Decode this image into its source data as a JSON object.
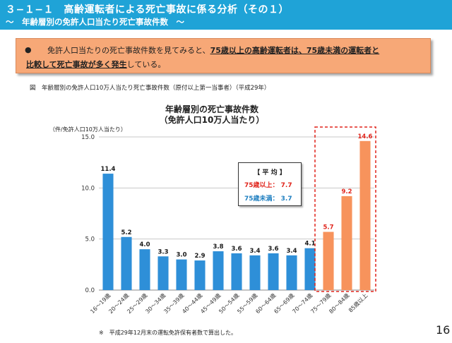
{
  "header": {
    "title": "３−１−１　高齢運転者による死亡事故に係る分析（その１）",
    "subtitle": "〜　年齢層別の免許人口当たり死亡事故件数　〜"
  },
  "notice": {
    "bullet": "●",
    "line1_a": "免許人口当たりの死亡事故件数を見てみると、",
    "line1_b": "75歳以上の高齢運転者は、75歳未満の運転者と",
    "line2_a": "比較して死亡事故が多く発生",
    "line2_b": "している。"
  },
  "figure_caption": "図　年齢層別の免許人口10万人当たり死亡事故件数（原付以上第一当事者）（平成29年）",
  "average_box": {
    "title": "【 平 均 】",
    "row1": "75歳以上： 7.7",
    "row2": "75歳未満： 3.7"
  },
  "footnote": "※　平成29年12月末の運転免許保有者数で算出した。",
  "page_number": "16",
  "colors": {
    "header": "#1fa3d7",
    "under75": "#2e8fd8",
    "over75": "#f7935c",
    "highlight_box": "#e0241b"
  },
  "chart_data": {
    "type": "bar",
    "title": "年齢層別の死亡事故件数\n（免許人口10万人当たり）",
    "ylabel": "（件/免許人口10万人当たり）",
    "ylim": [
      0,
      15
    ],
    "yticks": [
      "0.0",
      "5.0",
      "10.0",
      "15.0"
    ],
    "grid": true,
    "categories": [
      "16〜19歳",
      "20〜24歳",
      "25〜29歳",
      "30〜34歳",
      "35〜39歳",
      "40〜44歳",
      "45〜49歳",
      "50〜54歳",
      "55〜59歳",
      "60〜64歳",
      "65〜69歳",
      "70〜74歳",
      "75〜79歳",
      "80〜84歳",
      "85歳以上"
    ],
    "values": [
      11.4,
      5.2,
      4.0,
      3.3,
      3.0,
      2.9,
      3.8,
      3.6,
      3.4,
      3.6,
      3.4,
      4.1,
      5.7,
      9.2,
      14.6
    ],
    "value_labels": [
      "11.4",
      "5.2",
      "4.0",
      "3.3",
      "3.0",
      "2.9",
      "3.8",
      "3.6",
      "3.4",
      "3.6",
      "3.4",
      "4.1",
      "5.7",
      "9.2",
      "14.6"
    ]
  }
}
